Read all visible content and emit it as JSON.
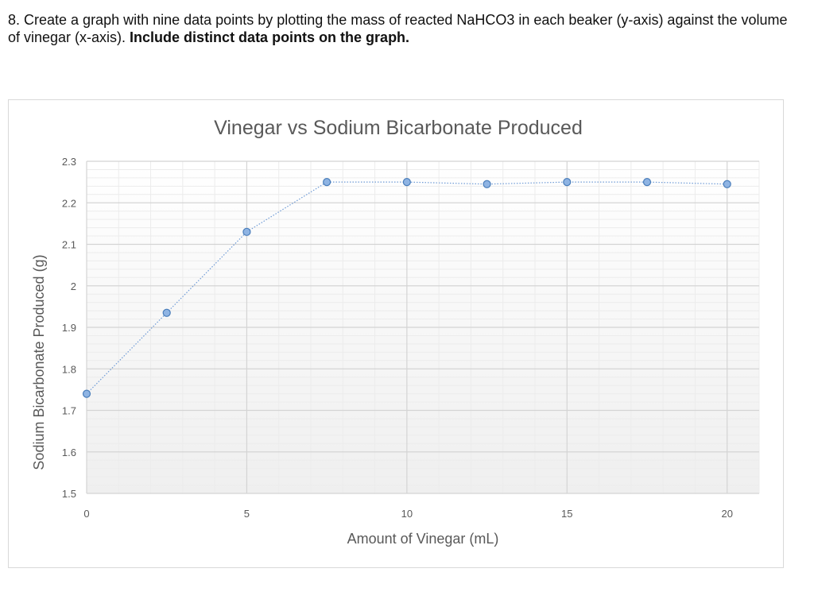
{
  "question": {
    "text": "8. Create a graph with nine data points by plotting the mass of reacted NaHCO3 in each beaker (y-axis) against the volume of vinegar (x-axis). ",
    "bold_text": "Include distinct data points on the graph."
  },
  "chart_data": {
    "type": "scatter",
    "title": "Vinegar vs  Sodium Bicarbonate Produced",
    "xlabel": "Amount of Vinegar (mL)",
    "ylabel": "Sodium Bicarbonate Produced (g)",
    "xlim": [
      0,
      21
    ],
    "ylim": [
      1.5,
      2.3
    ],
    "x_ticks": [
      "0",
      "5",
      "10",
      "15",
      "20"
    ],
    "y_ticks": [
      "1.5",
      "1.6",
      "1.7",
      "1.8",
      "1.9",
      "2",
      "2.1",
      "2.2",
      "2.3"
    ],
    "grid": true,
    "legend": "none",
    "series": [
      {
        "x": [
          0,
          2.5,
          5,
          7.5,
          10,
          12.5,
          15,
          17.5,
          20
        ],
        "y": [
          1.74,
          1.935,
          2.13,
          2.25,
          2.25,
          2.245,
          2.25,
          2.25,
          2.245
        ],
        "marker_color": "#8fb4e3",
        "marker_edge": "#4a7ebb",
        "line_color": "#6f9bd6",
        "line_style": "dotted"
      }
    ]
  }
}
